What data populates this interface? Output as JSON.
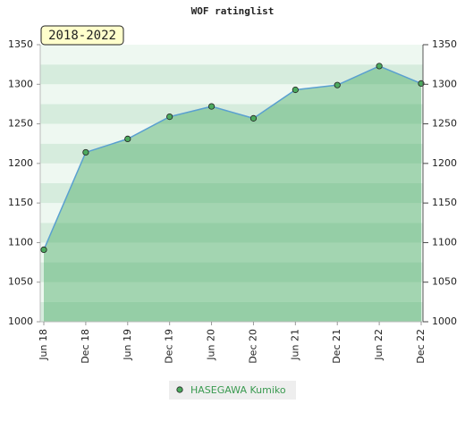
{
  "chart_data": {
    "type": "line",
    "title": "WOF ratinglist",
    "annotation": "2018-2022",
    "categories": [
      "Jun 18",
      "Dec 18",
      "Jun 19",
      "Dec 19",
      "Jun 20",
      "Dec 20",
      "Jun 21",
      "Dec 21",
      "Jun 22",
      "Dec 22"
    ],
    "series": [
      {
        "name": "HASEGAWA Kumiko",
        "color": "#5aa0d0",
        "values": [
          1091,
          1214,
          1231,
          1259,
          1272,
          1257,
          1293,
          1299,
          1323,
          1301
        ]
      }
    ],
    "ylim": [
      1000,
      1350
    ],
    "yticks": [
      1000,
      1050,
      1100,
      1150,
      1200,
      1250,
      1300,
      1350
    ],
    "y2lim": [
      1000,
      1350
    ],
    "y2ticks": [
      1000,
      1050,
      1100,
      1150,
      1200,
      1250,
      1300,
      1350
    ]
  }
}
